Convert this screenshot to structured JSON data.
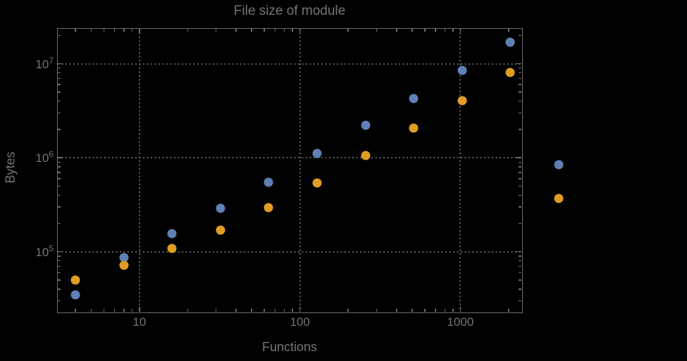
{
  "colors": {
    "background": "#000000",
    "text": "#757575",
    "frame": "#6e6e6e",
    "grid": "#5e5e5e",
    "series_blue": "#5E81B5",
    "series_orange": "#E19C24"
  },
  "chart_data": {
    "type": "scatter",
    "title": "File size of module",
    "xlabel": "Functions",
    "ylabel": "Bytes",
    "x_scale": "log",
    "y_scale": "log",
    "grid": true,
    "legend": "none",
    "xlim": [
      3.1,
      2400
    ],
    "ylim": [
      23000,
      23500000
    ],
    "x_ticks": [
      10,
      100,
      1000
    ],
    "x_tick_labels": [
      "10",
      "100",
      "1000"
    ],
    "y_ticks": [
      100000,
      1000000,
      10000000
    ],
    "y_tick_labels": [
      {
        "base": "10",
        "exp": "5"
      },
      {
        "base": "10",
        "exp": "6"
      },
      {
        "base": "10",
        "exp": "7"
      }
    ],
    "x": [
      4,
      8,
      16,
      32,
      64,
      128,
      256,
      512,
      1024,
      2048,
      4096
    ],
    "series": [
      {
        "name": "blue",
        "color": "#5E81B5",
        "values": [
          35000,
          86000,
          155000,
          290000,
          550000,
          1110000,
          2200000,
          4300000,
          8450000,
          16900000,
          840000
        ]
      },
      {
        "name": "orange",
        "color": "#E19C24",
        "values": [
          50000,
          72000,
          108000,
          170000,
          295000,
          540000,
          1050000,
          2070000,
          4050000,
          8100000,
          370000
        ]
      }
    ]
  }
}
